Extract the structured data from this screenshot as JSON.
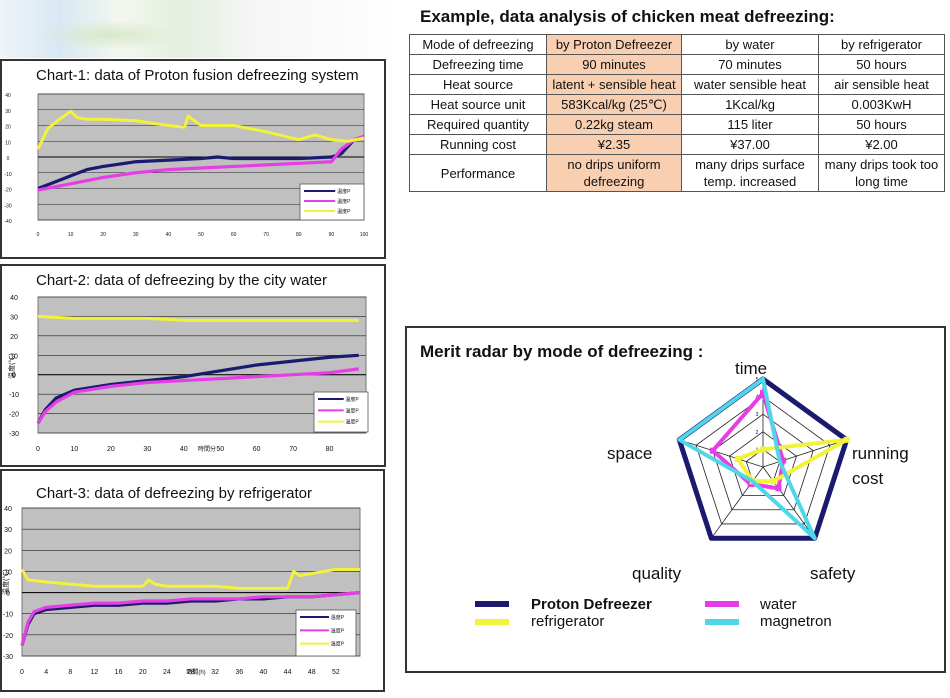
{
  "main_title": "Example, data analysis of chicken meat defreezing:",
  "table": {
    "headers": [
      "Mode of defreezing",
      "by Proton Defreezer",
      "by water",
      "by refrigerator"
    ],
    "rows": [
      [
        "Defreezing time",
        "90 minutes",
        "70 minutes",
        "50 hours"
      ],
      [
        "Heat source",
        "latent + sensible heat",
        "water sensible heat",
        "air sensible heat"
      ],
      [
        "Heat source unit",
        "583Kcal/kg (25℃)",
        "1Kcal/kg",
        "0.003KwH"
      ],
      [
        "Required quantity",
        "0.22kg steam",
        "115 liter",
        "50 hours"
      ],
      [
        "Running cost",
        "¥2.35",
        "¥37.00",
        "¥2.00"
      ],
      [
        "Performance",
        "no drips uniform defreezing",
        "many drips surface temp. increased",
        "many drips took too long time"
      ]
    ]
  },
  "colors": {
    "navy": "#1a1a6e",
    "magenta": "#e63ee6",
    "yellow": "#f2f23a",
    "cyan": "#4fd6e8",
    "plot_bg": "#c0c0c0",
    "highlight": "#f8cfb1"
  },
  "chart_data": [
    {
      "type": "line",
      "title": "Chart-1: data of Proton fusion defreezing system",
      "xlabel": "",
      "ylabel": "",
      "xlim": [
        0,
        100
      ],
      "ylim": [
        -40,
        40
      ],
      "x_ticks": [
        "0",
        "10",
        "20",
        "30",
        "40",
        "50",
        "60",
        "70",
        "80",
        "90",
        "100"
      ],
      "y_ticks": [
        "40",
        "30",
        "20",
        "10",
        "0",
        "-10",
        "-20",
        "-30",
        "-40"
      ],
      "legend": [
        "温度P",
        "温度P",
        "温度P"
      ],
      "series": [
        {
          "name": "navy",
          "x": [
            0,
            5,
            10,
            15,
            20,
            30,
            40,
            50,
            55,
            60,
            70,
            80,
            90,
            93,
            97,
            100
          ],
          "y": [
            -20,
            -16,
            -12,
            -8,
            -6,
            -3,
            -2,
            -1,
            0,
            -1,
            -1,
            -1,
            0,
            2,
            11,
            13
          ]
        },
        {
          "name": "magenta",
          "x": [
            0,
            5,
            10,
            20,
            30,
            40,
            50,
            60,
            70,
            80,
            90,
            93,
            97,
            100
          ],
          "y": [
            -21,
            -19,
            -17,
            -13,
            -10,
            -8,
            -7,
            -6,
            -5,
            -4,
            -3,
            5,
            11,
            13
          ]
        },
        {
          "name": "yellow",
          "x": [
            0,
            3,
            6,
            10,
            12,
            15,
            20,
            30,
            40,
            45,
            46,
            50,
            60,
            70,
            80,
            85,
            90,
            95,
            100
          ],
          "y": [
            5,
            18,
            23,
            29,
            25,
            24,
            24,
            23,
            20,
            19,
            26,
            20,
            20,
            16,
            11,
            14,
            11,
            10,
            12
          ]
        }
      ]
    },
    {
      "type": "line",
      "title": "Chart-2: data of defreezing by the city water",
      "xlabel": "時間分",
      "ylabel": "温度(℃)",
      "xlim": [
        0,
        90
      ],
      "ylim": [
        -30,
        40
      ],
      "x_ticks": [
        "0",
        "10",
        "20",
        "30",
        "40",
        "50",
        "60",
        "70",
        "80"
      ],
      "y_ticks": [
        "40",
        "30",
        "20",
        "10",
        "0",
        "-10",
        "-20",
        "-30"
      ],
      "legend": [
        "温度P",
        "温度P",
        "温度P"
      ],
      "series": [
        {
          "name": "navy",
          "x": [
            0,
            2,
            5,
            10,
            20,
            30,
            40,
            50,
            60,
            70,
            80,
            88
          ],
          "y": [
            -25,
            -18,
            -12,
            -8,
            -5,
            -3,
            -1,
            2,
            5,
            7,
            9,
            10
          ]
        },
        {
          "name": "magenta",
          "x": [
            0,
            2,
            5,
            10,
            20,
            30,
            40,
            50,
            60,
            70,
            80,
            88
          ],
          "y": [
            -25,
            -19,
            -14,
            -9,
            -6,
            -4,
            -3,
            -2,
            -1,
            0,
            1,
            3
          ]
        },
        {
          "name": "yellow",
          "x": [
            0,
            10,
            20,
            30,
            40,
            50,
            60,
            70,
            80,
            88
          ],
          "y": [
            30,
            29,
            29,
            29,
            28,
            28,
            28,
            28,
            28,
            28
          ]
        }
      ]
    },
    {
      "type": "line",
      "title": "Chart-3: data of defreezing by refrigerator",
      "xlabel": "時間(h)",
      "ylabel": "温度(℃)",
      "xlim": [
        0,
        56
      ],
      "ylim": [
        -30,
        40
      ],
      "x_ticks": [
        "0",
        "4",
        "8",
        "12",
        "16",
        "20",
        "24",
        "28",
        "32",
        "36",
        "40",
        "44",
        "48",
        "52"
      ],
      "y_ticks": [
        "40",
        "30",
        "20",
        "10",
        "0",
        "-10",
        "-20",
        "-30"
      ],
      "legend": [
        "温度P",
        "温度P",
        "温度P"
      ],
      "series": [
        {
          "name": "navy",
          "x": [
            0,
            1,
            2,
            4,
            8,
            12,
            16,
            20,
            24,
            28,
            32,
            36,
            40,
            44,
            48,
            52,
            56
          ],
          "y": [
            -25,
            -15,
            -10,
            -8,
            -7,
            -6,
            -6,
            -5,
            -5,
            -4,
            -4,
            -3,
            -3,
            -2,
            -2,
            -1,
            0
          ]
        },
        {
          "name": "magenta",
          "x": [
            0,
            1,
            2,
            4,
            8,
            12,
            16,
            20,
            24,
            28,
            32,
            36,
            40,
            44,
            48,
            52,
            56
          ],
          "y": [
            -25,
            -14,
            -9,
            -7,
            -6,
            -5,
            -5,
            -4,
            -4,
            -3,
            -3,
            -3,
            -2,
            -2,
            -2,
            -1,
            0
          ]
        },
        {
          "name": "yellow",
          "x": [
            0,
            1,
            4,
            8,
            12,
            16,
            20,
            21,
            22,
            24,
            28,
            32,
            36,
            40,
            44,
            45,
            46,
            48,
            52,
            56
          ],
          "y": [
            11,
            6,
            5,
            4,
            3,
            3,
            3,
            6,
            4,
            3,
            3,
            3,
            2,
            2,
            2,
            10,
            8,
            9,
            11,
            11
          ]
        }
      ]
    },
    {
      "type": "radar",
      "title": "Merit radar by mode of defreezing :",
      "axes": [
        "time",
        "running cost",
        "safety",
        "quality",
        "space"
      ],
      "axis_labels": [
        "time",
        "running\ncost",
        "safety",
        "quality",
        "space"
      ],
      "max": 5,
      "rings": [
        1,
        2,
        3,
        4,
        5
      ],
      "tick_labels": [
        "1",
        "2",
        "3",
        "4",
        "5"
      ],
      "series": [
        {
          "name": "Proton Defreezer",
          "values": [
            5,
            5,
            5,
            5,
            5
          ]
        },
        {
          "name": "water",
          "values": [
            4.2,
            1.2,
            1.5,
            1.2,
            3
          ]
        },
        {
          "name": "refrigerator",
          "values": [
            1,
            5,
            1,
            1,
            1.5
          ]
        },
        {
          "name": "magnetron",
          "values": [
            5,
            1,
            5,
            1,
            5
          ]
        }
      ]
    }
  ],
  "radar_title": "Merit radar by mode of defreezing :",
  "radar_labels": {
    "time": "time",
    "running": "running",
    "cost": "cost",
    "safety": "safety",
    "quality": "quality",
    "space": "space"
  },
  "legend": {
    "proton": "Proton Defreezer",
    "water": "water",
    "refrigerator": "refrigerator",
    "magnetron": "magnetron"
  }
}
